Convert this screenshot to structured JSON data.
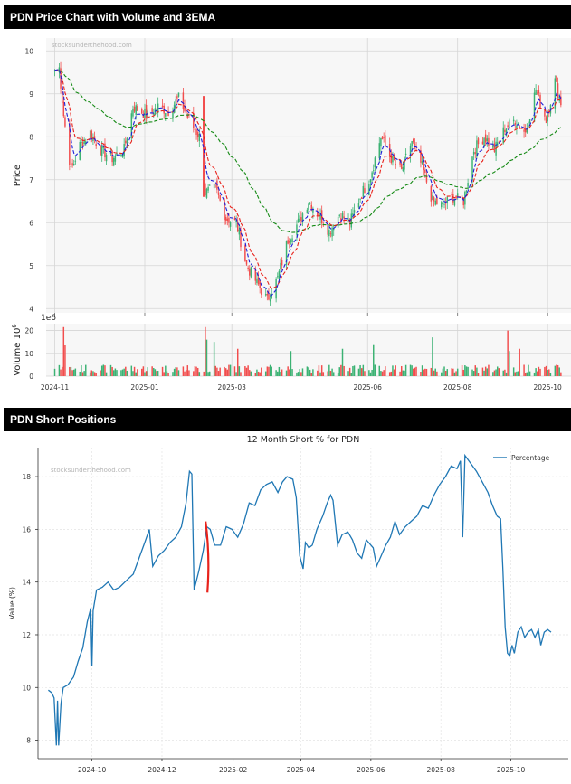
{
  "header_price": "PDN Price Chart with Volume and 3EMA",
  "header_short": "PDN Short Positions",
  "chart_data": [
    {
      "type": "candlestick",
      "title": "PDN Price Chart with Volume and 3EMA",
      "ylabel": "Price",
      "watermark": "stocksunderthehood.com",
      "ylim": [
        3.9,
        10.3
      ],
      "yticks": [
        "4",
        "5",
        "6",
        "7",
        "8",
        "9",
        "10"
      ],
      "xlim": [
        "2024-10-28",
        "2025-10-15"
      ],
      "xticks": [
        "2024-11",
        "2025-01",
        "2025-03",
        "2025-06",
        "2025-08",
        "2025-10"
      ],
      "price_anchors": [
        [
          "2024-11-01",
          9.55
        ],
        [
          "2024-11-04",
          9.6
        ],
        [
          "2024-11-07",
          8.5
        ],
        [
          "2024-11-12",
          7.2
        ],
        [
          "2024-11-18",
          7.8
        ],
        [
          "2024-11-25",
          8.1
        ],
        [
          "2024-12-02",
          7.7
        ],
        [
          "2024-12-10",
          7.5
        ],
        [
          "2024-12-18",
          7.7
        ],
        [
          "2024-12-24",
          8.7
        ],
        [
          "2025-01-03",
          8.5
        ],
        [
          "2025-01-10",
          8.7
        ],
        [
          "2025-01-17",
          8.6
        ],
        [
          "2025-01-24",
          8.9
        ],
        [
          "2025-01-31",
          8.4
        ],
        [
          "2025-02-07",
          8.0
        ],
        [
          "2025-02-11",
          6.7
        ],
        [
          "2025-02-18",
          6.8
        ],
        [
          "2025-02-25",
          6.1
        ],
        [
          "2025-03-04",
          6.0
        ],
        [
          "2025-03-11",
          5.0
        ],
        [
          "2025-03-18",
          4.6
        ],
        [
          "2025-03-25",
          4.2
        ],
        [
          "2025-04-01",
          4.7
        ],
        [
          "2025-04-08",
          5.6
        ],
        [
          "2025-04-15",
          6.0
        ],
        [
          "2025-04-22",
          6.5
        ],
        [
          "2025-04-29",
          6.2
        ],
        [
          "2025-05-06",
          5.8
        ],
        [
          "2025-05-13",
          6.2
        ],
        [
          "2025-05-20",
          6.0
        ],
        [
          "2025-05-27",
          6.6
        ],
        [
          "2025-06-03",
          7.1
        ],
        [
          "2025-06-10",
          8.0
        ],
        [
          "2025-06-17",
          7.5
        ],
        [
          "2025-06-24",
          7.2
        ],
        [
          "2025-07-01",
          7.9
        ],
        [
          "2025-07-08",
          7.3
        ],
        [
          "2025-07-15",
          6.5
        ],
        [
          "2025-07-22",
          6.4
        ],
        [
          "2025-07-29",
          6.6
        ],
        [
          "2025-08-05",
          6.5
        ],
        [
          "2025-08-12",
          7.7
        ],
        [
          "2025-08-19",
          8.0
        ],
        [
          "2025-08-26",
          7.7
        ],
        [
          "2025-09-02",
          8.2
        ],
        [
          "2025-09-09",
          8.4
        ],
        [
          "2025-09-16",
          8.1
        ],
        [
          "2025-09-23",
          9.1
        ],
        [
          "2025-09-30",
          8.4
        ],
        [
          "2025-10-06",
          9.3
        ],
        [
          "2025-10-10",
          8.8
        ]
      ],
      "ema_short_color": "#1f1fd8",
      "ema_mid_color": "#e8221b",
      "ema_long_color": "#158a15",
      "up_color": "#3bb273",
      "down_color": "#f24d4d",
      "volume": {
        "ylabel": "Volume",
        "ylabel_sup": "10",
        "ylabel_exp": "6",
        "offset_label": "1e6",
        "ylim": [
          0,
          23
        ],
        "yticks": [
          "0",
          "10",
          "20"
        ],
        "spikes": [
          [
            "2024-11-07",
            21.5
          ],
          [
            "2024-11-08",
            13.5
          ],
          [
            "2025-02-11",
            21.5
          ],
          [
            "2025-02-12",
            16
          ],
          [
            "2025-02-17",
            15
          ],
          [
            "2025-03-05",
            12
          ],
          [
            "2025-04-10",
            11
          ],
          [
            "2025-05-15",
            12
          ],
          [
            "2025-06-05",
            14
          ],
          [
            "2025-07-15",
            17
          ],
          [
            "2025-09-04",
            20
          ],
          [
            "2025-09-05",
            11
          ],
          [
            "2025-09-12",
            12
          ]
        ]
      }
    },
    {
      "type": "line",
      "title": "12 Month Short % for PDN",
      "ylabel": "Value (%)",
      "watermark": "stocksunderthehood.com",
      "xlim": [
        "2024-08-15",
        "2025-11-20"
      ],
      "ylim": [
        7.3,
        19.1
      ],
      "yticks": [
        "8",
        "10",
        "12",
        "14",
        "16",
        "18"
      ],
      "xticks": [
        "2024-10",
        "2024-12",
        "2025-02",
        "2025-04",
        "2025-06",
        "2025-08",
        "2025-10"
      ],
      "series": [
        {
          "name": "Percentage",
          "color": "#1f77b4",
          "points": [
            [
              "2024-08-24",
              9.9
            ],
            [
              "2024-08-27",
              9.8
            ],
            [
              "2024-08-29",
              9.6
            ],
            [
              "2024-08-31",
              7.8
            ],
            [
              "2024-09-01",
              9.5
            ],
            [
              "2024-09-02",
              7.8
            ],
            [
              "2024-09-04",
              9.4
            ],
            [
              "2024-09-06",
              10.0
            ],
            [
              "2024-09-10",
              10.1
            ],
            [
              "2024-09-15",
              10.4
            ],
            [
              "2024-09-19",
              11.0
            ],
            [
              "2024-09-23",
              11.5
            ],
            [
              "2024-09-27",
              12.5
            ],
            [
              "2024-09-30",
              13.0
            ],
            [
              "2024-10-01",
              10.8
            ],
            [
              "2024-10-02",
              12.9
            ],
            [
              "2024-10-05",
              13.7
            ],
            [
              "2024-10-10",
              13.8
            ],
            [
              "2024-10-15",
              14.0
            ],
            [
              "2024-10-20",
              13.7
            ],
            [
              "2024-10-25",
              13.8
            ],
            [
              "2024-11-01",
              14.1
            ],
            [
              "2024-11-06",
              14.3
            ],
            [
              "2024-11-11",
              14.9
            ],
            [
              "2024-11-16",
              15.5
            ],
            [
              "2024-11-20",
              16.0
            ],
            [
              "2024-11-23",
              14.6
            ],
            [
              "2024-11-28",
              15.0
            ],
            [
              "2024-12-03",
              15.2
            ],
            [
              "2024-12-08",
              15.5
            ],
            [
              "2024-12-13",
              15.7
            ],
            [
              "2024-12-18",
              16.1
            ],
            [
              "2024-12-22",
              17.0
            ],
            [
              "2024-12-25",
              18.2
            ],
            [
              "2024-12-27",
              18.1
            ],
            [
              "2024-12-29",
              13.7
            ],
            [
              "2025-01-02",
              14.4
            ],
            [
              "2025-01-06",
              15.2
            ],
            [
              "2025-01-09",
              16.1
            ],
            [
              "2025-01-12",
              16.0
            ],
            [
              "2025-01-16",
              15.4
            ],
            [
              "2025-01-21",
              15.4
            ],
            [
              "2025-01-26",
              16.1
            ],
            [
              "2025-01-31",
              16.0
            ],
            [
              "2025-02-05",
              15.7
            ],
            [
              "2025-02-10",
              16.2
            ],
            [
              "2025-02-15",
              17.0
            ],
            [
              "2025-02-20",
              16.9
            ],
            [
              "2025-02-25",
              17.5
            ],
            [
              "2025-03-02",
              17.7
            ],
            [
              "2025-03-07",
              17.8
            ],
            [
              "2025-03-12",
              17.4
            ],
            [
              "2025-03-16",
              17.8
            ],
            [
              "2025-03-20",
              18.0
            ],
            [
              "2025-03-25",
              17.9
            ],
            [
              "2025-03-28",
              17.2
            ],
            [
              "2025-03-31",
              15.0
            ],
            [
              "2025-04-03",
              14.5
            ],
            [
              "2025-04-05",
              15.5
            ],
            [
              "2025-04-08",
              15.3
            ],
            [
              "2025-04-11",
              15.4
            ],
            [
              "2025-04-15",
              16.0
            ],
            [
              "2025-04-20",
              16.5
            ],
            [
              "2025-04-24",
              17.0
            ],
            [
              "2025-04-27",
              17.3
            ],
            [
              "2025-04-29",
              17.1
            ],
            [
              "2025-05-03",
              15.4
            ],
            [
              "2025-05-07",
              15.8
            ],
            [
              "2025-05-12",
              15.9
            ],
            [
              "2025-05-16",
              15.6
            ],
            [
              "2025-05-20",
              15.1
            ],
            [
              "2025-05-24",
              14.9
            ],
            [
              "2025-05-28",
              15.6
            ],
            [
              "2025-06-03",
              15.3
            ],
            [
              "2025-06-06",
              14.6
            ],
            [
              "2025-06-10",
              15.0
            ],
            [
              "2025-06-14",
              15.4
            ],
            [
              "2025-06-18",
              15.7
            ],
            [
              "2025-06-22",
              16.3
            ],
            [
              "2025-06-26",
              15.8
            ],
            [
              "2025-07-01",
              16.1
            ],
            [
              "2025-07-06",
              16.3
            ],
            [
              "2025-07-11",
              16.5
            ],
            [
              "2025-07-16",
              16.9
            ],
            [
              "2025-07-21",
              16.8
            ],
            [
              "2025-07-26",
              17.3
            ],
            [
              "2025-07-31",
              17.7
            ],
            [
              "2025-08-05",
              18.0
            ],
            [
              "2025-08-10",
              18.4
            ],
            [
              "2025-08-15",
              18.3
            ],
            [
              "2025-08-18",
              18.6
            ],
            [
              "2025-08-20",
              15.7
            ],
            [
              "2025-08-22",
              18.8
            ],
            [
              "2025-08-27",
              18.5
            ],
            [
              "2025-09-01",
              18.2
            ],
            [
              "2025-09-06",
              17.8
            ],
            [
              "2025-09-11",
              17.4
            ],
            [
              "2025-09-15",
              16.9
            ],
            [
              "2025-09-19",
              16.5
            ],
            [
              "2025-09-22",
              16.4
            ],
            [
              "2025-09-24",
              14.5
            ],
            [
              "2025-09-26",
              12.3
            ],
            [
              "2025-09-28",
              11.3
            ],
            [
              "2025-09-30",
              11.2
            ],
            [
              "2025-10-02",
              11.6
            ],
            [
              "2025-10-04",
              11.3
            ],
            [
              "2025-10-07",
              12.1
            ],
            [
              "2025-10-10",
              12.3
            ],
            [
              "2025-10-13",
              11.9
            ],
            [
              "2025-10-16",
              12.1
            ],
            [
              "2025-10-19",
              12.2
            ],
            [
              "2025-10-22",
              11.9
            ],
            [
              "2025-10-25",
              12.2
            ],
            [
              "2025-10-27",
              11.6
            ],
            [
              "2025-10-30",
              12.1
            ],
            [
              "2025-11-02",
              12.2
            ],
            [
              "2025-11-05",
              12.1
            ]
          ]
        }
      ]
    }
  ]
}
